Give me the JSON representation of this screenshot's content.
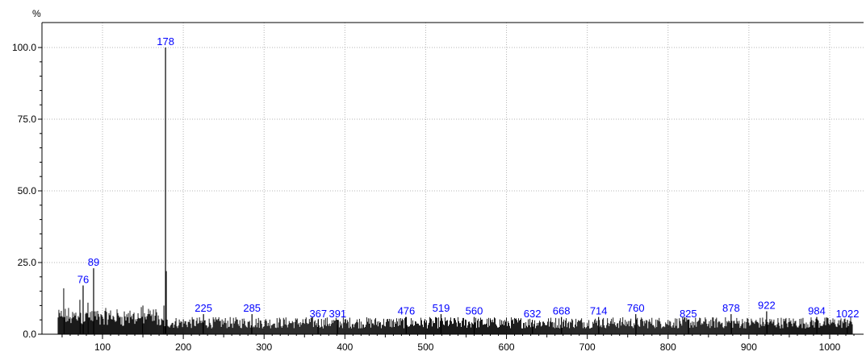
{
  "chart_data": {
    "type": "bar",
    "subtype": "mass-spectrum",
    "title": "",
    "xlabel": "",
    "ylabel": "%",
    "xlim": [
      40,
      1030
    ],
    "ylim": [
      0,
      100
    ],
    "grid": true,
    "legend": "none",
    "xticks": [
      "100",
      "200",
      "300",
      "400",
      "500",
      "600",
      "700",
      "800",
      "900",
      "1000"
    ],
    "yticks": [
      "0.0",
      "25.0",
      "50.0",
      "75.0",
      "100.0"
    ],
    "labeled_peaks": [
      {
        "label": "76",
        "x": 76,
        "y": 17
      },
      {
        "label": "89",
        "x": 89,
        "y": 23
      },
      {
        "label": "178",
        "x": 178,
        "y": 100
      },
      {
        "label": "225",
        "x": 225,
        "y": 7
      },
      {
        "label": "285",
        "x": 285,
        "y": 7
      },
      {
        "label": "367",
        "x": 367,
        "y": 5
      },
      {
        "label": "391",
        "x": 391,
        "y": 5
      },
      {
        "label": "476",
        "x": 476,
        "y": 6
      },
      {
        "label": "519",
        "x": 519,
        "y": 7
      },
      {
        "label": "560",
        "x": 560,
        "y": 6
      },
      {
        "label": "632",
        "x": 632,
        "y": 5
      },
      {
        "label": "668",
        "x": 668,
        "y": 6
      },
      {
        "label": "714",
        "x": 714,
        "y": 6
      },
      {
        "label": "760",
        "x": 760,
        "y": 7
      },
      {
        "label": "825",
        "x": 825,
        "y": 5
      },
      {
        "label": "878",
        "x": 878,
        "y": 7
      },
      {
        "label": "922",
        "x": 922,
        "y": 8
      },
      {
        "label": "984",
        "x": 984,
        "y": 6
      },
      {
        "label": "1022",
        "x": 1022,
        "y": 5
      }
    ],
    "other_peaks": [
      {
        "x": 52,
        "y": 16
      },
      {
        "x": 72,
        "y": 12
      },
      {
        "x": 82,
        "y": 11
      },
      {
        "x": 150,
        "y": 10
      },
      {
        "x": 176,
        "y": 10
      },
      {
        "x": 179,
        "y": 22
      }
    ],
    "noise_range": [
      45,
      1028
    ],
    "noise_level": [
      2,
      6
    ]
  },
  "colors": {
    "peak_label": "#0000ff",
    "bars": "#000000",
    "grid": "#b4b4b4",
    "axis": "#000000"
  }
}
